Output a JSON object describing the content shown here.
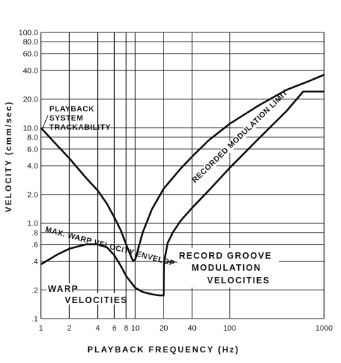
{
  "chart_data": {
    "type": "line",
    "xscale": "log",
    "yscale": "log",
    "xlim": [
      1,
      1000
    ],
    "ylim": [
      0.1,
      100
    ],
    "grid": true,
    "xlabel": "PLAYBACK FREQUENCY (Hz)",
    "ylabel": "VELOCITY (cmm/sec)",
    "xticks": [
      {
        "value": 1,
        "label": "1"
      },
      {
        "value": 2,
        "label": "2"
      },
      {
        "value": 4,
        "label": "4"
      },
      {
        "value": 6,
        "label": "6"
      },
      {
        "value": 8,
        "label": "8"
      },
      {
        "value": 10,
        "label": "10"
      },
      {
        "value": 20,
        "label": "20"
      },
      {
        "value": 40,
        "label": "40"
      },
      {
        "value": 100,
        "label": "100"
      },
      {
        "value": 1000,
        "label": "1000"
      }
    ],
    "yticks": [
      {
        "value": 100,
        "label": "100.0"
      },
      {
        "value": 80,
        "label": "80.0"
      },
      {
        "value": 60,
        "label": "60.0"
      },
      {
        "value": 40,
        "label": "40.0"
      },
      {
        "value": 20,
        "label": "20.0"
      },
      {
        "value": 10,
        "label": "10.0"
      },
      {
        "value": 8,
        "label": "8.0"
      },
      {
        "value": 6,
        "label": "6.0"
      },
      {
        "value": 4,
        "label": "4.0"
      },
      {
        "value": 2,
        "label": "2.0"
      },
      {
        "value": 1,
        "label": "1.0"
      },
      {
        "value": 0.8,
        "label": ".8"
      },
      {
        "value": 0.6,
        "label": ".6"
      },
      {
        "value": 0.4,
        "label": ".4"
      },
      {
        "value": 0.2,
        "label": ".2"
      },
      {
        "value": 0.1,
        "label": ".1"
      }
    ],
    "series": [
      {
        "x": [
          1,
          1.5,
          2,
          3,
          4,
          5,
          6,
          7,
          8,
          9,
          9.5,
          10,
          12,
          15,
          20,
          30,
          40,
          60,
          100,
          200,
          400,
          700,
          1000
        ],
        "y": [
          10,
          6.5,
          4.8,
          3.0,
          2.2,
          1.6,
          1.15,
          0.85,
          0.6,
          0.45,
          0.4,
          0.42,
          0.8,
          1.4,
          2.3,
          3.7,
          5.0,
          7.4,
          11,
          17,
          25,
          31,
          36
        ]
      },
      {
        "x": [
          1,
          1.5,
          2,
          3,
          4,
          5,
          6,
          7,
          8,
          10,
          12,
          15,
          18,
          20,
          20.1,
          22,
          25,
          30,
          40,
          60,
          100,
          200,
          400,
          600,
          1000
        ],
        "y": [
          0.37,
          0.47,
          0.54,
          0.6,
          0.6,
          0.56,
          0.46,
          0.36,
          0.28,
          0.21,
          0.19,
          0.18,
          0.175,
          0.175,
          0.38,
          0.62,
          0.8,
          1.05,
          1.45,
          2.2,
          3.8,
          7.6,
          15,
          24,
          24
        ]
      }
    ],
    "annotations": [
      {
        "id": "playback-trackability",
        "lines": [
          "PLAYBACK",
          "SYSTEM",
          "TRACKABILITY"
        ]
      },
      {
        "id": "recorded-modulation-limit",
        "text": "RECORDED MODULATION LIMIT"
      },
      {
        "id": "max-warp-envelope",
        "text": "MAX. WARP VELOCITY ENVELOPE"
      },
      {
        "id": "record-groove",
        "lines": [
          "RECORD GROOVE",
          "MODULATION",
          "VELOCITIES"
        ]
      },
      {
        "id": "warp-velocities",
        "lines": [
          "WARP",
          "VELOCITIES"
        ]
      }
    ]
  }
}
